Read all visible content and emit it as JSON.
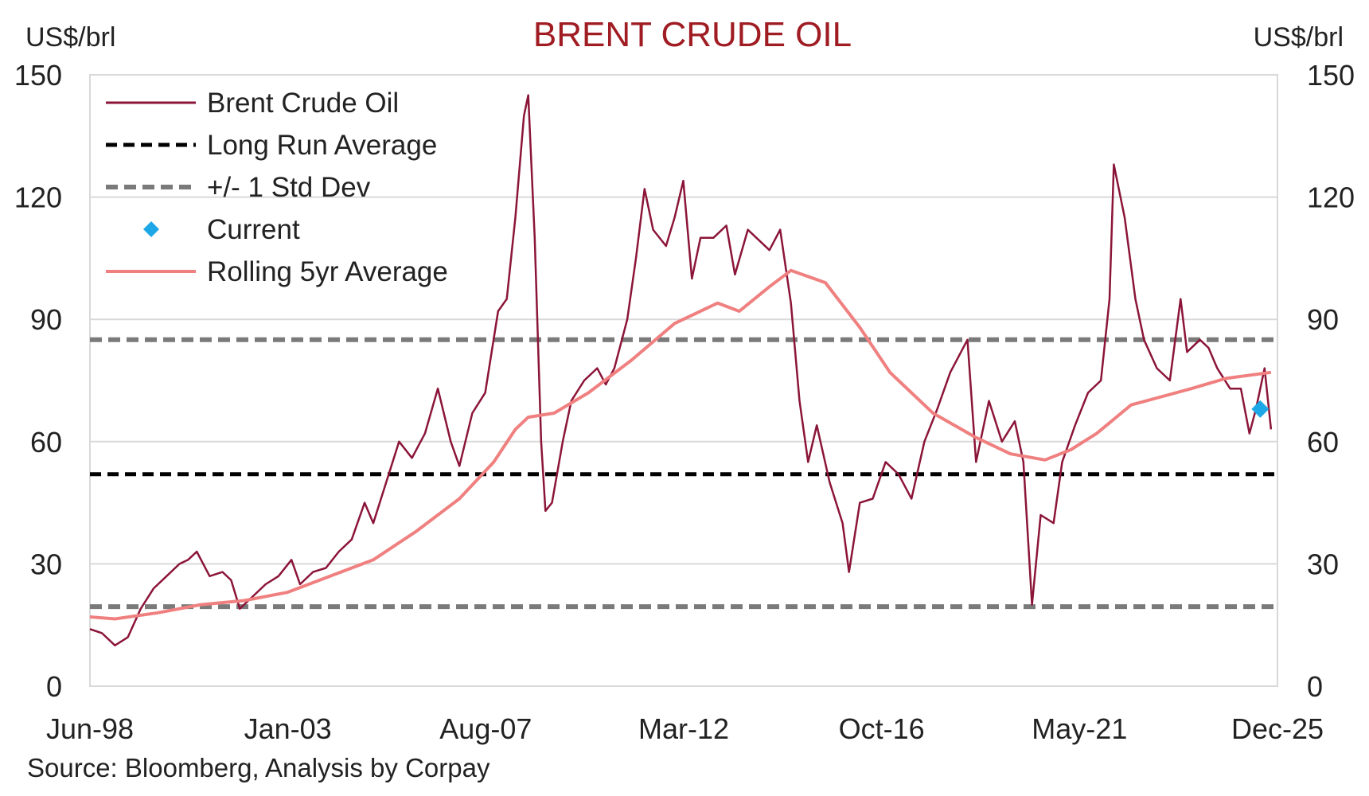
{
  "chart_data": {
    "type": "line",
    "title": "BRENT CRUDE OIL",
    "ylabel_left": "US$/brl",
    "ylabel_right": "US$/brl",
    "ylim": [
      0,
      150
    ],
    "yticks": [
      "0",
      "30",
      "60",
      "90",
      "120",
      "150"
    ],
    "xlim": [
      1998.42,
      2026.0
    ],
    "xtick_labels": [
      "Jun-98",
      "Jan-03",
      "Aug-07",
      "Mar-12",
      "Oct-16",
      "May-21",
      "Dec-25"
    ],
    "grid": "horizontal",
    "legend_position": "top-left",
    "legend": [
      {
        "label": "Brent Crude Oil",
        "key": "brent"
      },
      {
        "label": "Long Run Average",
        "key": "lra"
      },
      {
        "label": "+/- 1 Std Dev",
        "key": "std"
      },
      {
        "label": "Current",
        "key": "current"
      },
      {
        "label": "Rolling 5yr Average",
        "key": "roll"
      }
    ],
    "colors": {
      "brent": "#8b1538",
      "lra": "#000000",
      "std": "#7a7a7a",
      "current": "#1ea7e6",
      "roll": "#f08080",
      "title": "#a01c23",
      "grid": "#d9d9d9"
    },
    "long_run_average": 52,
    "std_dev_upper": 85,
    "std_dev_lower": 19.5,
    "current": {
      "x": 2025.6,
      "y": 68
    },
    "series": [
      {
        "key": "brent",
        "name": "Brent Crude Oil",
        "points": [
          [
            1998.42,
            14
          ],
          [
            1998.7,
            13
          ],
          [
            1999.0,
            10
          ],
          [
            1999.3,
            12
          ],
          [
            1999.6,
            19
          ],
          [
            1999.9,
            24
          ],
          [
            2000.2,
            27
          ],
          [
            2000.5,
            30
          ],
          [
            2000.7,
            31
          ],
          [
            2000.9,
            33
          ],
          [
            2001.2,
            27
          ],
          [
            2001.5,
            28
          ],
          [
            2001.7,
            26
          ],
          [
            2001.9,
            19
          ],
          [
            2002.2,
            22
          ],
          [
            2002.5,
            25
          ],
          [
            2002.8,
            27
          ],
          [
            2003.1,
            31
          ],
          [
            2003.3,
            25
          ],
          [
            2003.6,
            28
          ],
          [
            2003.9,
            29
          ],
          [
            2004.2,
            33
          ],
          [
            2004.5,
            36
          ],
          [
            2004.8,
            45
          ],
          [
            2005.0,
            40
          ],
          [
            2005.3,
            50
          ],
          [
            2005.6,
            60
          ],
          [
            2005.9,
            56
          ],
          [
            2006.2,
            62
          ],
          [
            2006.5,
            73
          ],
          [
            2006.8,
            60
          ],
          [
            2007.0,
            54
          ],
          [
            2007.3,
            67
          ],
          [
            2007.6,
            72
          ],
          [
            2007.9,
            92
          ],
          [
            2008.1,
            95
          ],
          [
            2008.3,
            115
          ],
          [
            2008.5,
            140
          ],
          [
            2008.6,
            145
          ],
          [
            2008.75,
            110
          ],
          [
            2008.9,
            60
          ],
          [
            2009.0,
            43
          ],
          [
            2009.15,
            45
          ],
          [
            2009.4,
            60
          ],
          [
            2009.6,
            70
          ],
          [
            2009.9,
            75
          ],
          [
            2010.2,
            78
          ],
          [
            2010.4,
            74
          ],
          [
            2010.6,
            78
          ],
          [
            2010.9,
            90
          ],
          [
            2011.1,
            105
          ],
          [
            2011.3,
            122
          ],
          [
            2011.5,
            112
          ],
          [
            2011.8,
            108
          ],
          [
            2012.0,
            115
          ],
          [
            2012.2,
            124
          ],
          [
            2012.4,
            100
          ],
          [
            2012.6,
            110
          ],
          [
            2012.9,
            110
          ],
          [
            2013.2,
            113
          ],
          [
            2013.4,
            101
          ],
          [
            2013.7,
            112
          ],
          [
            2013.9,
            110
          ],
          [
            2014.2,
            107
          ],
          [
            2014.45,
            112
          ],
          [
            2014.7,
            94
          ],
          [
            2014.9,
            70
          ],
          [
            2015.1,
            55
          ],
          [
            2015.3,
            64
          ],
          [
            2015.6,
            50
          ],
          [
            2015.9,
            40
          ],
          [
            2016.05,
            28
          ],
          [
            2016.3,
            45
          ],
          [
            2016.6,
            46
          ],
          [
            2016.9,
            55
          ],
          [
            2017.2,
            52
          ],
          [
            2017.5,
            46
          ],
          [
            2017.8,
            60
          ],
          [
            2018.1,
            68
          ],
          [
            2018.4,
            77
          ],
          [
            2018.8,
            85
          ],
          [
            2019.0,
            55
          ],
          [
            2019.3,
            70
          ],
          [
            2019.6,
            60
          ],
          [
            2019.9,
            65
          ],
          [
            2020.1,
            55
          ],
          [
            2020.3,
            20
          ],
          [
            2020.5,
            42
          ],
          [
            2020.8,
            40
          ],
          [
            2021.0,
            55
          ],
          [
            2021.3,
            64
          ],
          [
            2021.6,
            72
          ],
          [
            2021.9,
            75
          ],
          [
            2022.1,
            95
          ],
          [
            2022.2,
            128
          ],
          [
            2022.45,
            115
          ],
          [
            2022.7,
            95
          ],
          [
            2022.9,
            85
          ],
          [
            2023.2,
            78
          ],
          [
            2023.5,
            75
          ],
          [
            2023.75,
            95
          ],
          [
            2023.9,
            82
          ],
          [
            2024.2,
            85
          ],
          [
            2024.4,
            83
          ],
          [
            2024.6,
            78
          ],
          [
            2024.9,
            73
          ],
          [
            2025.15,
            73
          ],
          [
            2025.35,
            62
          ],
          [
            2025.5,
            68
          ],
          [
            2025.7,
            78
          ],
          [
            2025.85,
            63
          ]
        ]
      },
      {
        "key": "roll",
        "name": "Rolling 5yr Average",
        "points": [
          [
            1998.42,
            17
          ],
          [
            1999.0,
            16.5
          ],
          [
            2000.0,
            18
          ],
          [
            2001.0,
            20
          ],
          [
            2002.0,
            21
          ],
          [
            2003.0,
            23
          ],
          [
            2004.0,
            27
          ],
          [
            2005.0,
            31
          ],
          [
            2006.0,
            38
          ],
          [
            2007.0,
            46
          ],
          [
            2007.8,
            55
          ],
          [
            2008.3,
            63
          ],
          [
            2008.6,
            66
          ],
          [
            2009.2,
            67
          ],
          [
            2010.0,
            72
          ],
          [
            2011.0,
            80
          ],
          [
            2012.0,
            89
          ],
          [
            2013.0,
            94
          ],
          [
            2013.5,
            92
          ],
          [
            2014.2,
            98
          ],
          [
            2014.7,
            102
          ],
          [
            2015.5,
            99
          ],
          [
            2016.3,
            88
          ],
          [
            2017.0,
            77
          ],
          [
            2018.0,
            67
          ],
          [
            2019.0,
            61
          ],
          [
            2019.8,
            57
          ],
          [
            2020.6,
            55.5
          ],
          [
            2021.2,
            58
          ],
          [
            2021.8,
            62
          ],
          [
            2022.6,
            69
          ],
          [
            2023.3,
            71
          ],
          [
            2024.0,
            73
          ],
          [
            2024.8,
            75.5
          ],
          [
            2025.85,
            77
          ]
        ]
      }
    ]
  },
  "source_note": "Source: Bloomberg, Analysis by Corpay"
}
